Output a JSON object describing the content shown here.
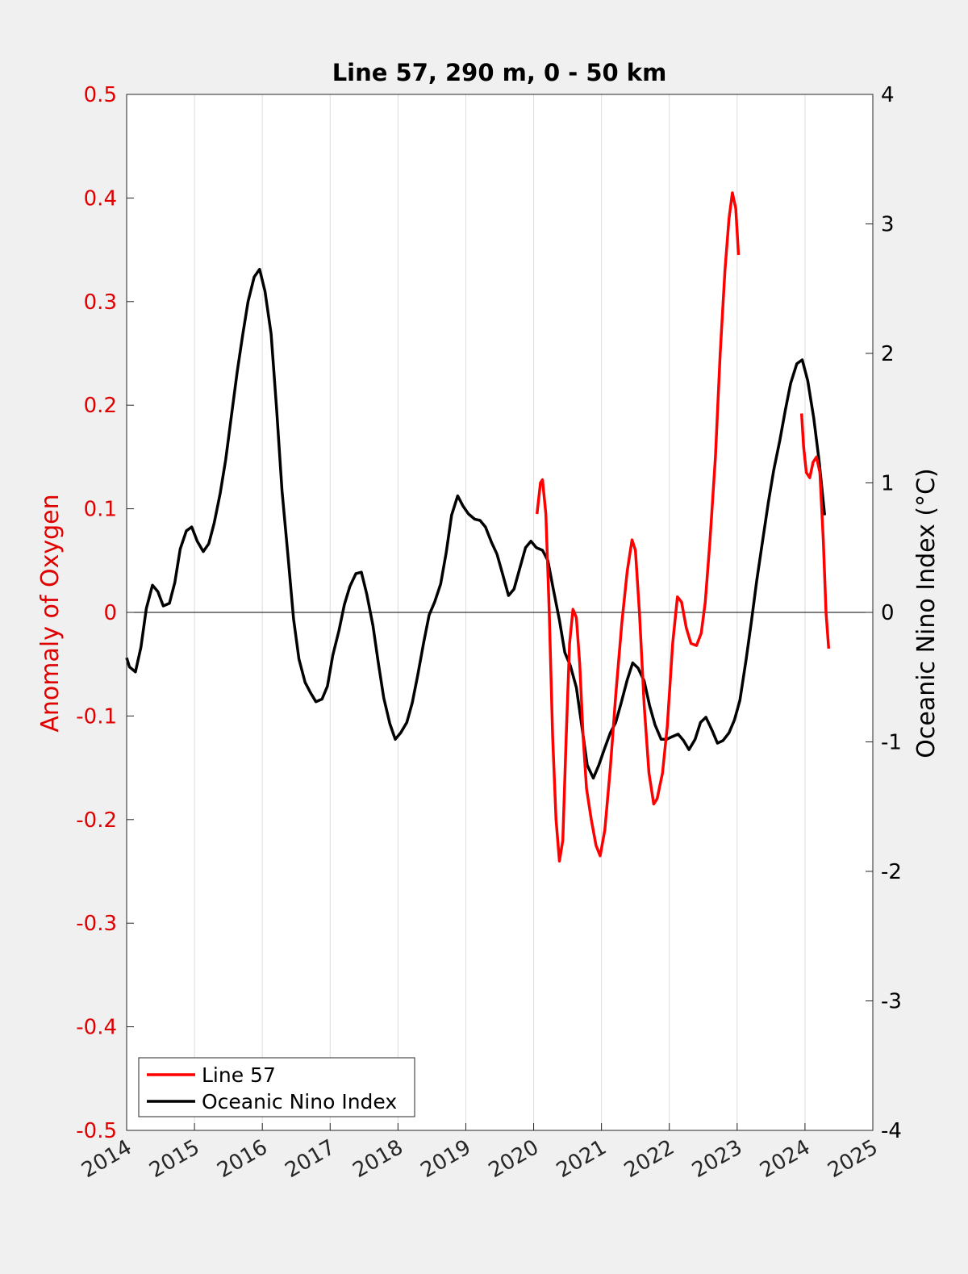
{
  "chart_data": {
    "type": "line",
    "title": "Line 57, 290 m, 0 - 50 km",
    "xlabel": "",
    "ylabel_left": "Anomaly of Oxygen",
    "ylabel_right": "Oceanic Nino Index (°C)",
    "xlim": [
      2014,
      2025
    ],
    "ylim_left": [
      -0.5,
      0.5
    ],
    "ylim_right": [
      -4,
      4
    ],
    "x_ticks": [
      "2014",
      "2015",
      "2016",
      "2017",
      "2018",
      "2019",
      "2020",
      "2021",
      "2022",
      "2023",
      "2024",
      "2025"
    ],
    "y_left_ticks": [
      "-0.5",
      "-0.4",
      "-0.3",
      "-0.2",
      "-0.1",
      "0",
      "0.1",
      "0.2",
      "0.3",
      "0.4",
      "0.5"
    ],
    "y_right_ticks": [
      "-4",
      "-3",
      "-2",
      "-1",
      "0",
      "1",
      "2",
      "3",
      "4"
    ],
    "grid": "vertical",
    "zero_line": true,
    "legend": {
      "placement": "bottom-left",
      "entries": [
        "Line 57",
        "Oceanic Nino Index"
      ]
    },
    "colors": {
      "line57": "#ff0000",
      "oni": "#000000",
      "left_axis": "#e00000",
      "right_axis": "#000000"
    },
    "series": [
      {
        "name": "Line 57",
        "axis": "left",
        "segments": [
          [
            [
              2020.05,
              0.095
            ],
            [
              2020.1,
              0.125
            ],
            [
              2020.13,
              0.128
            ],
            [
              2020.18,
              0.095
            ],
            [
              2020.23,
              0.0
            ],
            [
              2020.28,
              -0.12
            ],
            [
              2020.33,
              -0.2
            ],
            [
              2020.38,
              -0.24
            ],
            [
              2020.43,
              -0.22
            ],
            [
              2020.48,
              -0.12
            ],
            [
              2020.53,
              -0.03
            ],
            [
              2020.58,
              0.003
            ],
            [
              2020.63,
              -0.005
            ],
            [
              2020.68,
              -0.05
            ],
            [
              2020.73,
              -0.12
            ],
            [
              2020.78,
              -0.17
            ],
            [
              2020.85,
              -0.2
            ],
            [
              2020.92,
              -0.225
            ],
            [
              2020.98,
              -0.235
            ],
            [
              2021.05,
              -0.21
            ],
            [
              2021.13,
              -0.15
            ],
            [
              2021.21,
              -0.08
            ],
            [
              2021.3,
              -0.01
            ],
            [
              2021.38,
              0.04
            ],
            [
              2021.45,
              0.07
            ],
            [
              2021.5,
              0.06
            ],
            [
              2021.56,
              0.0
            ],
            [
              2021.63,
              -0.09
            ],
            [
              2021.7,
              -0.155
            ],
            [
              2021.77,
              -0.185
            ],
            [
              2021.82,
              -0.18
            ],
            [
              2021.9,
              -0.155
            ],
            [
              2021.97,
              -0.11
            ],
            [
              2022.05,
              -0.03
            ],
            [
              2022.12,
              0.015
            ],
            [
              2022.18,
              0.01
            ],
            [
              2022.25,
              -0.015
            ],
            [
              2022.32,
              -0.03
            ],
            [
              2022.4,
              -0.032
            ],
            [
              2022.47,
              -0.02
            ],
            [
              2022.53,
              0.01
            ],
            [
              2022.6,
              0.07
            ],
            [
              2022.68,
              0.15
            ],
            [
              2022.75,
              0.25
            ],
            [
              2022.82,
              0.33
            ],
            [
              2022.88,
              0.38
            ],
            [
              2022.93,
              0.405
            ],
            [
              2022.98,
              0.39
            ],
            [
              2023.02,
              0.345
            ]
          ],
          [
            [
              2023.95,
              0.192
            ],
            [
              2023.98,
              0.16
            ],
            [
              2024.02,
              0.135
            ],
            [
              2024.07,
              0.13
            ],
            [
              2024.12,
              0.145
            ],
            [
              2024.17,
              0.15
            ],
            [
              2024.22,
              0.135
            ],
            [
              2024.27,
              0.07
            ],
            [
              2024.31,
              0.0
            ],
            [
              2024.35,
              -0.035
            ]
          ]
        ]
      },
      {
        "name": "Oceanic Nino Index",
        "axis": "right",
        "segments": [
          [
            [
              2014.0,
              -0.35
            ],
            [
              2014.04,
              -0.42
            ],
            [
              2014.13,
              -0.46
            ],
            [
              2014.21,
              -0.27
            ],
            [
              2014.29,
              0.03
            ],
            [
              2014.38,
              0.21
            ],
            [
              2014.46,
              0.16
            ],
            [
              2014.54,
              0.05
            ],
            [
              2014.63,
              0.07
            ],
            [
              2014.71,
              0.23
            ],
            [
              2014.79,
              0.49
            ],
            [
              2014.88,
              0.63
            ],
            [
              2014.96,
              0.66
            ],
            [
              2015.04,
              0.55
            ],
            [
              2015.13,
              0.47
            ],
            [
              2015.21,
              0.53
            ],
            [
              2015.29,
              0.69
            ],
            [
              2015.38,
              0.92
            ],
            [
              2015.46,
              1.18
            ],
            [
              2015.54,
              1.5
            ],
            [
              2015.63,
              1.86
            ],
            [
              2015.71,
              2.14
            ],
            [
              2015.79,
              2.4
            ],
            [
              2015.88,
              2.59
            ],
            [
              2015.96,
              2.65
            ],
            [
              2016.04,
              2.48
            ],
            [
              2016.13,
              2.15
            ],
            [
              2016.21,
              1.58
            ],
            [
              2016.29,
              0.94
            ],
            [
              2016.38,
              0.43
            ],
            [
              2016.46,
              -0.05
            ],
            [
              2016.54,
              -0.36
            ],
            [
              2016.63,
              -0.54
            ],
            [
              2016.71,
              -0.62
            ],
            [
              2016.79,
              -0.69
            ],
            [
              2016.88,
              -0.67
            ],
            [
              2016.96,
              -0.57
            ],
            [
              2017.04,
              -0.33
            ],
            [
              2017.13,
              -0.14
            ],
            [
              2017.21,
              0.06
            ],
            [
              2017.29,
              0.2
            ],
            [
              2017.38,
              0.3
            ],
            [
              2017.46,
              0.31
            ],
            [
              2017.54,
              0.14
            ],
            [
              2017.63,
              -0.1
            ],
            [
              2017.71,
              -0.39
            ],
            [
              2017.79,
              -0.66
            ],
            [
              2017.88,
              -0.86
            ],
            [
              2017.96,
              -0.98
            ],
            [
              2018.04,
              -0.93
            ],
            [
              2018.13,
              -0.85
            ],
            [
              2018.21,
              -0.7
            ],
            [
              2018.29,
              -0.49
            ],
            [
              2018.38,
              -0.23
            ],
            [
              2018.46,
              -0.02
            ],
            [
              2018.54,
              0.08
            ],
            [
              2018.63,
              0.22
            ],
            [
              2018.71,
              0.46
            ],
            [
              2018.79,
              0.75
            ],
            [
              2018.88,
              0.9
            ],
            [
              2018.96,
              0.82
            ],
            [
              2019.04,
              0.76
            ],
            [
              2019.13,
              0.72
            ],
            [
              2019.21,
              0.71
            ],
            [
              2019.29,
              0.66
            ],
            [
              2019.38,
              0.54
            ],
            [
              2019.46,
              0.45
            ],
            [
              2019.54,
              0.3
            ],
            [
              2019.63,
              0.13
            ],
            [
              2019.71,
              0.18
            ],
            [
              2019.79,
              0.33
            ],
            [
              2019.88,
              0.5
            ],
            [
              2019.96,
              0.55
            ],
            [
              2020.04,
              0.5
            ],
            [
              2020.13,
              0.48
            ],
            [
              2020.21,
              0.4
            ],
            [
              2020.29,
              0.18
            ],
            [
              2020.38,
              -0.06
            ],
            [
              2020.46,
              -0.31
            ],
            [
              2020.54,
              -0.41
            ],
            [
              2020.63,
              -0.58
            ],
            [
              2020.71,
              -0.88
            ],
            [
              2020.79,
              -1.18
            ],
            [
              2020.88,
              -1.28
            ],
            [
              2020.96,
              -1.18
            ],
            [
              2021.04,
              -1.06
            ],
            [
              2021.13,
              -0.93
            ],
            [
              2021.21,
              -0.85
            ],
            [
              2021.29,
              -0.7
            ],
            [
              2021.38,
              -0.52
            ],
            [
              2021.46,
              -0.39
            ],
            [
              2021.54,
              -0.43
            ],
            [
              2021.63,
              -0.53
            ],
            [
              2021.71,
              -0.72
            ],
            [
              2021.79,
              -0.87
            ],
            [
              2021.88,
              -0.98
            ],
            [
              2021.96,
              -0.98
            ],
            [
              2022.04,
              -0.96
            ],
            [
              2022.13,
              -0.94
            ],
            [
              2022.21,
              -0.99
            ],
            [
              2022.29,
              -1.06
            ],
            [
              2022.38,
              -0.98
            ],
            [
              2022.46,
              -0.85
            ],
            [
              2022.54,
              -0.81
            ],
            [
              2022.63,
              -0.91
            ],
            [
              2022.71,
              -1.01
            ],
            [
              2022.79,
              -0.99
            ],
            [
              2022.88,
              -0.93
            ],
            [
              2022.96,
              -0.83
            ],
            [
              2023.04,
              -0.68
            ],
            [
              2023.13,
              -0.37
            ],
            [
              2023.21,
              -0.07
            ],
            [
              2023.29,
              0.25
            ],
            [
              2023.38,
              0.57
            ],
            [
              2023.46,
              0.85
            ],
            [
              2023.54,
              1.1
            ],
            [
              2023.63,
              1.33
            ],
            [
              2023.71,
              1.56
            ],
            [
              2023.79,
              1.77
            ],
            [
              2023.88,
              1.92
            ],
            [
              2023.96,
              1.95
            ],
            [
              2024.04,
              1.79
            ],
            [
              2024.13,
              1.5
            ],
            [
              2024.21,
              1.16
            ],
            [
              2024.29,
              0.75
            ]
          ]
        ]
      }
    ]
  }
}
